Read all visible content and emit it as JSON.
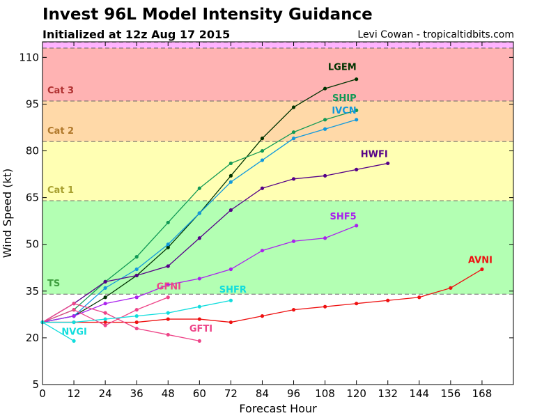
{
  "header": {
    "title": "Invest 96L Model Intensity Guidance",
    "subtitle": "Initialized at 12z Aug 17 2015",
    "credit": "Levi Cowan - tropicaltidbits.com"
  },
  "chart_data": {
    "type": "line",
    "title": "Invest 96L Model Intensity Guidance",
    "subtitle": "Initialized at 12z Aug 17 2015",
    "xlabel": "Forecast Hour",
    "ylabel": "Wind Speed (kt)",
    "xlim": [
      0,
      180
    ],
    "ylim": [
      5,
      115
    ],
    "xticks": [
      0,
      12,
      24,
      36,
      48,
      60,
      72,
      84,
      96,
      108,
      120,
      132,
      144,
      156,
      168
    ],
    "yticks": [
      5,
      20,
      35,
      50,
      65,
      80,
      95,
      110
    ],
    "grid": false,
    "bands": [
      {
        "label": "",
        "from": 113,
        "to": 115,
        "color": "#ffb3ff"
      },
      {
        "label": "Cat 3",
        "from": 96,
        "to": 113,
        "color": "#ffb3b3",
        "label_color": "#b03030"
      },
      {
        "label": "Cat 2",
        "from": 83,
        "to": 96,
        "color": "#ffd9a8",
        "label_color": "#b0782a"
      },
      {
        "label": "Cat 1",
        "from": 64,
        "to": 83,
        "color": "#ffffb3",
        "label_color": "#a8a030"
      },
      {
        "label": "TS",
        "from": 34,
        "to": 64,
        "color": "#b3ffb3",
        "label_color": "#40a040"
      }
    ],
    "series": [
      {
        "name": "LGEM",
        "color": "#003300",
        "x": [
          0,
          12,
          24,
          36,
          48,
          60,
          72,
          84,
          96,
          108,
          120
        ],
        "values": [
          25,
          27,
          33,
          40,
          49,
          60,
          72,
          84,
          94,
          100,
          103
        ]
      },
      {
        "name": "SHIP",
        "color": "#119955",
        "x": [
          0,
          12,
          24,
          36,
          48,
          60,
          72,
          84,
          96,
          108,
          120
        ],
        "values": [
          25,
          29,
          38,
          46,
          57,
          68,
          76,
          80,
          86,
          90,
          93
        ]
      },
      {
        "name": "IVCN",
        "color": "#1199dd",
        "x": [
          0,
          12,
          24,
          36,
          48,
          60,
          72,
          84,
          96,
          108,
          120
        ],
        "values": [
          25,
          27,
          36,
          42,
          50,
          60,
          70,
          77,
          84,
          87,
          90
        ]
      },
      {
        "name": "HWFI",
        "color": "#550088",
        "x": [
          0,
          12,
          24,
          36,
          48,
          60,
          72,
          84,
          96,
          108,
          120,
          132
        ],
        "values": [
          25,
          31,
          38,
          40,
          43,
          52,
          61,
          68,
          71,
          72,
          74,
          76
        ]
      },
      {
        "name": "SHF5",
        "color": "#aa22ee",
        "x": [
          0,
          12,
          24,
          36,
          48,
          60,
          72,
          84,
          96,
          108,
          120
        ],
        "values": [
          25,
          27,
          31,
          33,
          37,
          39,
          42,
          48,
          51,
          52,
          56
        ]
      },
      {
        "name": "AVNI",
        "color": "#ee1111",
        "x": [
          0,
          12,
          24,
          36,
          48,
          60,
          72,
          84,
          96,
          108,
          120,
          132,
          144,
          156,
          168
        ],
        "values": [
          25,
          25,
          25,
          25,
          26,
          26,
          25,
          27,
          29,
          30,
          31,
          32,
          33,
          36,
          42
        ]
      },
      {
        "name": "GFNI",
        "color": "#ee4488",
        "x": [
          0,
          12,
          24,
          36,
          48
        ],
        "values": [
          25,
          29,
          24,
          29,
          33
        ]
      },
      {
        "name": "GFTI",
        "color": "#ee4488",
        "x": [
          0,
          12,
          24,
          36,
          48,
          60
        ],
        "values": [
          25,
          31,
          28,
          23,
          21,
          19
        ]
      },
      {
        "name": "SHFR",
        "color": "#11dddd",
        "x": [
          0,
          12,
          24,
          36,
          48,
          60,
          72
        ],
        "values": [
          25,
          25,
          26,
          27,
          28,
          30,
          32
        ]
      },
      {
        "name": "NVGI",
        "color": "#11dddd",
        "x": [
          0,
          12
        ],
        "values": [
          25,
          19
        ]
      }
    ],
    "series_labels": [
      {
        "name": "LGEM",
        "x": 120,
        "y": 106,
        "anchor": "end",
        "color": "#003300"
      },
      {
        "name": "SHIP",
        "x": 120,
        "y": 96,
        "anchor": "end",
        "color": "#119955"
      },
      {
        "name": "IVCN",
        "x": 120,
        "y": 92,
        "anchor": "end",
        "color": "#1199dd"
      },
      {
        "name": "HWFI",
        "x": 132,
        "y": 78,
        "anchor": "end",
        "color": "#550088"
      },
      {
        "name": "SHF5",
        "x": 120,
        "y": 58,
        "anchor": "end",
        "color": "#aa22ee"
      },
      {
        "name": "AVNI",
        "x": 172,
        "y": 44,
        "anchor": "end",
        "color": "#ee1111"
      },
      {
        "name": "GFNI",
        "x": 53,
        "y": 35.5,
        "anchor": "end",
        "color": "#ee4488"
      },
      {
        "name": "GFTI",
        "x": 65,
        "y": 22,
        "anchor": "end",
        "color": "#ee4488"
      },
      {
        "name": "SHFR",
        "x": 78,
        "y": 34.5,
        "anchor": "end",
        "color": "#11dddd"
      },
      {
        "name": "NVGI",
        "x": 17,
        "y": 21,
        "anchor": "end",
        "color": "#11dddd"
      }
    ]
  }
}
